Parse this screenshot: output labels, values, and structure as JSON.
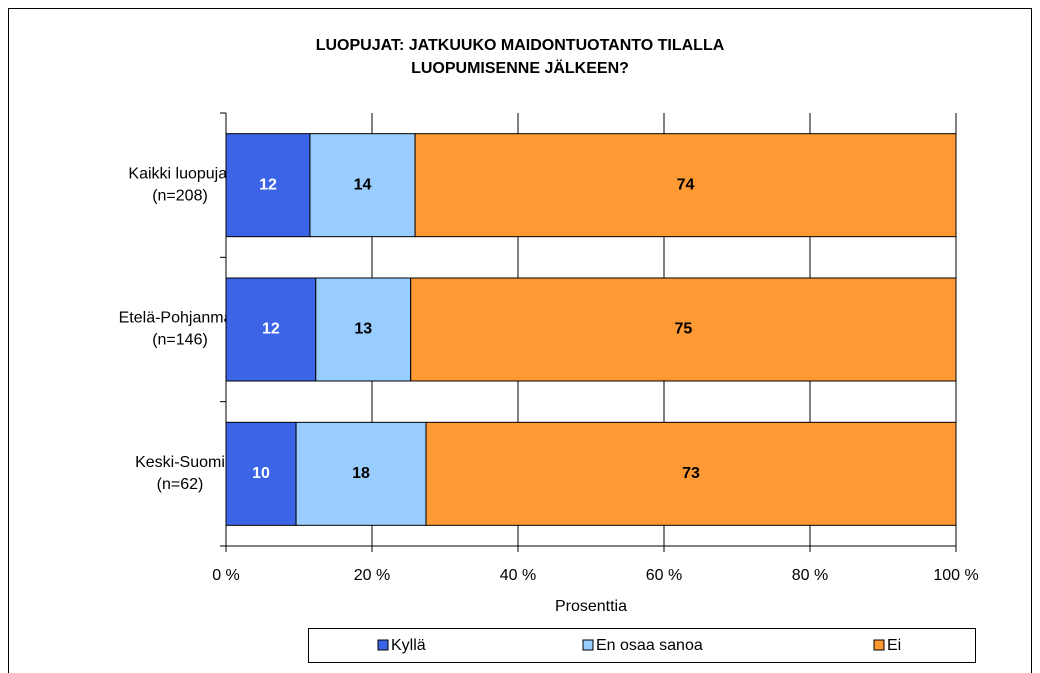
{
  "chart_data": {
    "type": "stacked_barh",
    "title": [
      "LUOPUJAT: JATKUUKO MAIDONTUOTANTO TILALLA",
      "LUOPUMISENNE JÄLKEEN?"
    ],
    "categories": [
      [
        "Kaikki luopujat",
        "(n=208)"
      ],
      [
        "Etelä-Pohjanmaa",
        "(n=146)"
      ],
      [
        "Keski-Suomi",
        "(n=62)"
      ]
    ],
    "series": [
      {
        "name": "Kyllä",
        "color": "#3b64e6",
        "label_color": "#ffffff",
        "values": [
          11.5,
          12.3,
          9.6
        ],
        "value_labels": [
          "12",
          "12",
          "10"
        ]
      },
      {
        "name": "En osaa sanoa",
        "color": "#99ccff",
        "label_color": "#000000",
        "values": [
          14.4,
          13.0,
          17.8
        ],
        "value_labels": [
          "14",
          "13",
          "18"
        ]
      },
      {
        "name": "Ei",
        "color": "#ff9933",
        "label_color": "#000000",
        "values": [
          74.1,
          74.7,
          72.6
        ],
        "value_labels": [
          "74",
          "75",
          "73"
        ]
      }
    ],
    "xlabel": "Prosenttia",
    "xlim": [
      0,
      100
    ],
    "xticks": [
      {
        "value": 0,
        "label": "0 %"
      },
      {
        "value": 20,
        "label": "20 %"
      },
      {
        "value": 40,
        "label": "40 %"
      },
      {
        "value": 60,
        "label": "60 %"
      },
      {
        "value": 80,
        "label": "80 %"
      },
      {
        "value": 100,
        "label": "100 %"
      }
    ],
    "grid": true,
    "legend": "bottom"
  }
}
